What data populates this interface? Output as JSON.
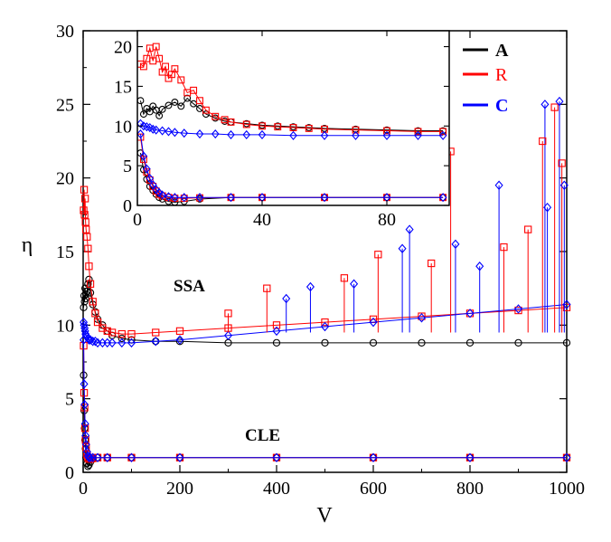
{
  "chart_data": [
    {
      "type": "scatter",
      "panel": "main",
      "xlabel": "V",
      "ylabel": "η",
      "xlim": [
        0,
        1000
      ],
      "ylim": [
        0,
        30
      ],
      "xticks": [
        0,
        200,
        400,
        600,
        800,
        1000
      ],
      "yticks": [
        0,
        5,
        10,
        15,
        20,
        25,
        30
      ],
      "annotations": [
        "SSA",
        "CLE"
      ],
      "legend_position": "top-right",
      "series_legend": [
        {
          "name": "A",
          "color": "#000000",
          "marker": "circle"
        },
        {
          "name": "R",
          "color": "#ff0000",
          "marker": "square"
        },
        {
          "name": "C",
          "color": "#0000ff",
          "marker": "diamond"
        }
      ],
      "series_ssa": [
        {
          "name": "A",
          "color": "#000000",
          "x": [
            1,
            2,
            3,
            4,
            5,
            6,
            8,
            10,
            12,
            15,
            20,
            25,
            30,
            40,
            50,
            60,
            80,
            100,
            150,
            200,
            300,
            400,
            500,
            600,
            700,
            800,
            900,
            1000
          ],
          "y": [
            11.2,
            12.0,
            11.6,
            12.5,
            11.8,
            12.1,
            12.3,
            12.8,
            13.1,
            12.2,
            11.4,
            10.9,
            10.4,
            10.0,
            9.6,
            9.3,
            9.1,
            9.0,
            8.9,
            8.9,
            8.8,
            8.8,
            8.8,
            8.8,
            8.8,
            8.8,
            8.8,
            8.8
          ]
        },
        {
          "name": "R",
          "color": "#ff0000",
          "x": [
            1,
            2,
            3,
            4,
            5,
            6,
            8,
            10,
            12,
            15,
            20,
            25,
            30,
            40,
            50,
            60,
            80,
            100,
            150,
            200,
            300,
            400,
            500,
            600,
            700,
            800,
            900,
            1000
          ],
          "y": [
            17.8,
            19.2,
            17.5,
            18.6,
            17.0,
            16.5,
            16.0,
            15.2,
            14.0,
            12.8,
            11.6,
            10.8,
            10.2,
            9.8,
            9.6,
            9.5,
            9.4,
            9.4,
            9.5,
            9.6,
            9.8,
            10.0,
            10.2,
            10.4,
            10.6,
            10.8,
            11.0,
            11.2
          ]
        },
        {
          "name": "C",
          "color": "#0000ff",
          "x": [
            1,
            2,
            3,
            4,
            5,
            6,
            8,
            10,
            12,
            15,
            20,
            25,
            30,
            40,
            50,
            60,
            80,
            100,
            150,
            200,
            300,
            400,
            500,
            600,
            700,
            800,
            900,
            1000
          ],
          "y": [
            10.2,
            10.0,
            9.8,
            9.6,
            9.4,
            9.3,
            9.2,
            9.1,
            9.0,
            9.0,
            8.9,
            8.9,
            8.8,
            8.8,
            8.8,
            8.8,
            8.8,
            8.8,
            8.9,
            9.0,
            9.3,
            9.6,
            9.9,
            10.2,
            10.5,
            10.8,
            11.1,
            11.4
          ]
        }
      ],
      "series_cle": [
        {
          "name": "A",
          "color": "#000000",
          "x": [
            1,
            2,
            3,
            4,
            5,
            6,
            8,
            10,
            12,
            15,
            20,
            30,
            50,
            100,
            200,
            400,
            600,
            800,
            1000
          ],
          "y": [
            6.6,
            4.2,
            3.0,
            2.2,
            1.6,
            1.0,
            0.6,
            0.4,
            0.5,
            0.7,
            0.9,
            1.0,
            1.0,
            1.0,
            1.0,
            1.0,
            1.0,
            1.0,
            1.0
          ]
        },
        {
          "name": "R",
          "color": "#ff0000",
          "x": [
            1,
            2,
            3,
            4,
            5,
            6,
            8,
            10,
            12,
            15,
            20,
            30,
            50,
            100,
            200,
            400,
            600,
            800,
            1000
          ],
          "y": [
            8.6,
            5.4,
            4.4,
            3.0,
            2.2,
            1.7,
            1.2,
            1.0,
            0.9,
            0.9,
            0.95,
            1.0,
            1.0,
            1.0,
            1.0,
            1.0,
            1.0,
            1.0,
            1.0
          ]
        },
        {
          "name": "C",
          "color": "#0000ff",
          "x": [
            1,
            2,
            3,
            4,
            5,
            6,
            8,
            10,
            12,
            15,
            20,
            30,
            50,
            100,
            200,
            400,
            600,
            800,
            1000
          ],
          "y": [
            9.0,
            6.0,
            4.6,
            3.3,
            2.5,
            1.9,
            1.4,
            1.1,
            1.0,
            1.0,
            1.0,
            1.0,
            1.0,
            1.0,
            1.0,
            1.0,
            1.0,
            1.0,
            1.0
          ]
        }
      ],
      "ssa_spikes": [
        {
          "x": 300,
          "y": 10.8,
          "color": "#ff0000"
        },
        {
          "x": 380,
          "y": 12.5,
          "color": "#ff0000"
        },
        {
          "x": 420,
          "y": 11.8,
          "color": "#0000ff"
        },
        {
          "x": 470,
          "y": 12.6,
          "color": "#0000ff"
        },
        {
          "x": 540,
          "y": 13.2,
          "color": "#ff0000"
        },
        {
          "x": 560,
          "y": 12.8,
          "color": "#0000ff"
        },
        {
          "x": 610,
          "y": 14.8,
          "color": "#ff0000"
        },
        {
          "x": 660,
          "y": 15.2,
          "color": "#0000ff"
        },
        {
          "x": 675,
          "y": 16.5,
          "color": "#0000ff"
        },
        {
          "x": 720,
          "y": 14.2,
          "color": "#ff0000"
        },
        {
          "x": 760,
          "y": 21.8,
          "color": "#ff0000"
        },
        {
          "x": 770,
          "y": 15.5,
          "color": "#0000ff"
        },
        {
          "x": 820,
          "y": 14.0,
          "color": "#0000ff"
        },
        {
          "x": 860,
          "y": 19.5,
          "color": "#0000ff"
        },
        {
          "x": 870,
          "y": 15.3,
          "color": "#ff0000"
        },
        {
          "x": 920,
          "y": 16.5,
          "color": "#ff0000"
        },
        {
          "x": 955,
          "y": 25.0,
          "color": "#0000ff"
        },
        {
          "x": 950,
          "y": 22.5,
          "color": "#ff0000"
        },
        {
          "x": 960,
          "y": 18.0,
          "color": "#0000ff"
        },
        {
          "x": 975,
          "y": 24.8,
          "color": "#ff0000"
        },
        {
          "x": 985,
          "y": 25.2,
          "color": "#0000ff"
        },
        {
          "x": 990,
          "y": 21.0,
          "color": "#ff0000"
        },
        {
          "x": 995,
          "y": 19.5,
          "color": "#0000ff"
        }
      ]
    },
    {
      "type": "scatter",
      "panel": "inset",
      "xlim": [
        0,
        100
      ],
      "ylim": [
        0,
        22
      ],
      "xticks": [
        0,
        40,
        80
      ],
      "yticks": [
        0,
        5,
        10,
        15,
        20
      ],
      "series_upper": [
        {
          "name": "A",
          "color": "#000000",
          "x": [
            1,
            2,
            3,
            4,
            5,
            6,
            7,
            8,
            10,
            12,
            14,
            16,
            18,
            20,
            22,
            25,
            28,
            30,
            35,
            40,
            45,
            50,
            55,
            60,
            70,
            80,
            90,
            98
          ],
          "y": [
            13.2,
            11.5,
            12.2,
            11.8,
            12.5,
            12.0,
            11.3,
            12.1,
            12.6,
            13.0,
            12.5,
            13.5,
            12.8,
            12.2,
            11.5,
            11.0,
            10.6,
            10.5,
            10.3,
            10.1,
            10.0,
            9.9,
            9.8,
            9.7,
            9.6,
            9.5,
            9.4,
            9.4
          ]
        },
        {
          "name": "R",
          "color": "#ff0000",
          "x": [
            1,
            2,
            3,
            4,
            5,
            6,
            7,
            8,
            9,
            10,
            11,
            12,
            14,
            16,
            18,
            20,
            22,
            25,
            28,
            30,
            35,
            40,
            45,
            50,
            55,
            60,
            70,
            80,
            90,
            98
          ],
          "y": [
            17.8,
            17.5,
            18.5,
            19.8,
            18.2,
            20.0,
            18.5,
            16.8,
            17.5,
            16.0,
            16.5,
            17.2,
            15.8,
            14.2,
            14.5,
            13.2,
            12.0,
            11.2,
            10.8,
            10.5,
            10.2,
            10.0,
            9.9,
            9.8,
            9.7,
            9.6,
            9.5,
            9.4,
            9.3,
            9.3
          ]
        },
        {
          "name": "C",
          "color": "#0000ff",
          "x": [
            1,
            2,
            3,
            4,
            5,
            6,
            8,
            10,
            12,
            15,
            20,
            25,
            30,
            35,
            40,
            50,
            60,
            70,
            80,
            90,
            98
          ],
          "y": [
            10.3,
            10.0,
            9.9,
            9.8,
            9.6,
            9.5,
            9.4,
            9.3,
            9.2,
            9.1,
            9.0,
            9.0,
            8.9,
            8.9,
            8.9,
            8.8,
            8.8,
            8.8,
            8.8,
            8.8,
            8.8
          ]
        }
      ],
      "series_lower": [
        {
          "name": "A",
          "color": "#000000",
          "x": [
            1,
            2,
            3,
            4,
            5,
            6,
            7,
            8,
            10,
            12,
            15,
            20,
            30,
            40,
            60,
            80,
            98
          ],
          "y": [
            6.6,
            4.5,
            3.3,
            2.4,
            1.9,
            1.4,
            1.0,
            0.8,
            0.5,
            0.4,
            0.5,
            0.8,
            1.0,
            1.0,
            1.0,
            1.0,
            1.0
          ]
        },
        {
          "name": "R",
          "color": "#ff0000",
          "x": [
            1,
            2,
            3,
            4,
            5,
            6,
            7,
            8,
            10,
            12,
            15,
            20,
            30,
            40,
            60,
            80,
            98
          ],
          "y": [
            8.6,
            5.8,
            4.2,
            3.2,
            2.4,
            1.8,
            1.4,
            1.2,
            1.0,
            0.9,
            0.9,
            0.95,
            1.0,
            1.0,
            1.0,
            1.0,
            1.0
          ]
        },
        {
          "name": "C",
          "color": "#0000ff",
          "x": [
            1,
            2,
            3,
            4,
            5,
            6,
            7,
            8,
            10,
            12,
            15,
            20,
            30,
            40,
            60,
            80,
            98
          ],
          "y": [
            9.0,
            6.2,
            4.6,
            3.4,
            2.6,
            2.0,
            1.6,
            1.3,
            1.1,
            1.0,
            1.0,
            1.0,
            1.0,
            1.0,
            1.0,
            1.0,
            1.0
          ]
        }
      ]
    }
  ]
}
